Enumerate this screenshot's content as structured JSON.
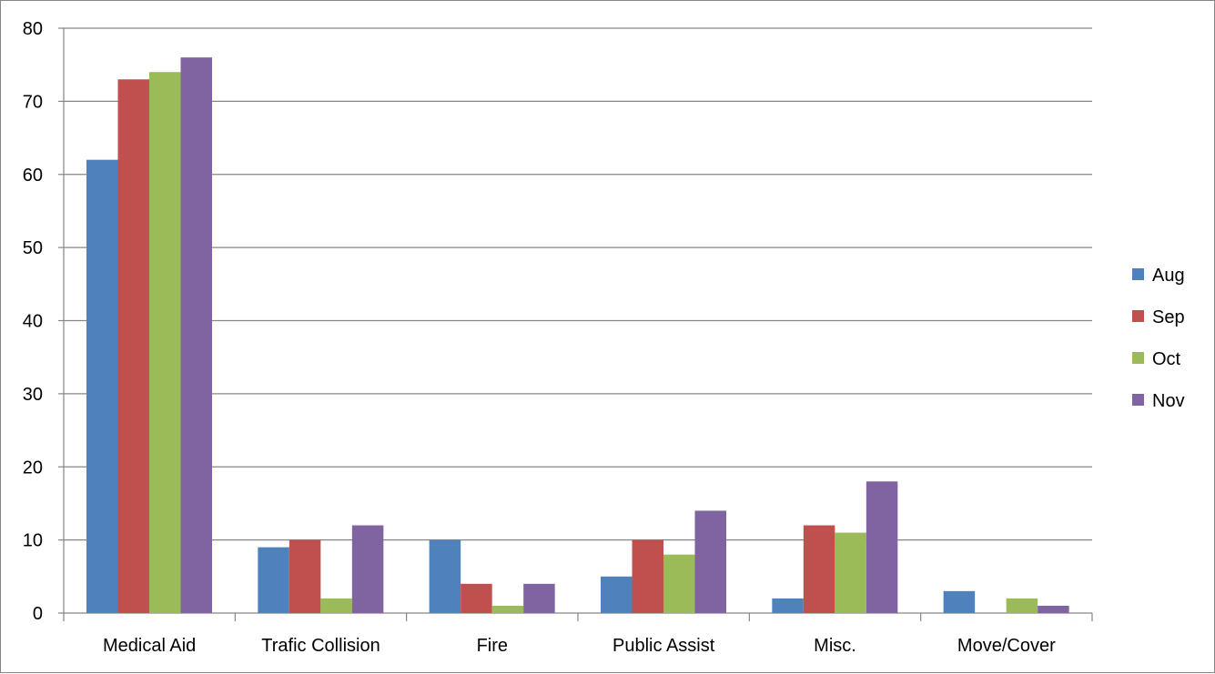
{
  "chart_data": {
    "type": "bar",
    "categories": [
      "Medical Aid",
      "Trafic Collision",
      "Fire",
      "Public Assist",
      "Misc.",
      "Move/Cover"
    ],
    "series": [
      {
        "name": "Aug",
        "color": "#4F81BD",
        "values": [
          62,
          9,
          10,
          5,
          2,
          3
        ]
      },
      {
        "name": "Sep",
        "color": "#C0504D",
        "values": [
          73,
          10,
          4,
          10,
          12,
          0
        ]
      },
      {
        "name": "Oct",
        "color": "#9BBB59",
        "values": [
          74,
          2,
          1,
          8,
          11,
          2
        ]
      },
      {
        "name": "Nov",
        "color": "#8064A2",
        "values": [
          76,
          12,
          4,
          14,
          18,
          1
        ]
      }
    ],
    "ylim": [
      0,
      80
    ],
    "yticks": [
      0,
      10,
      20,
      30,
      40,
      50,
      60,
      70,
      80
    ],
    "grid": true,
    "legend_position": "right",
    "title": "",
    "xlabel": "",
    "ylabel": ""
  }
}
